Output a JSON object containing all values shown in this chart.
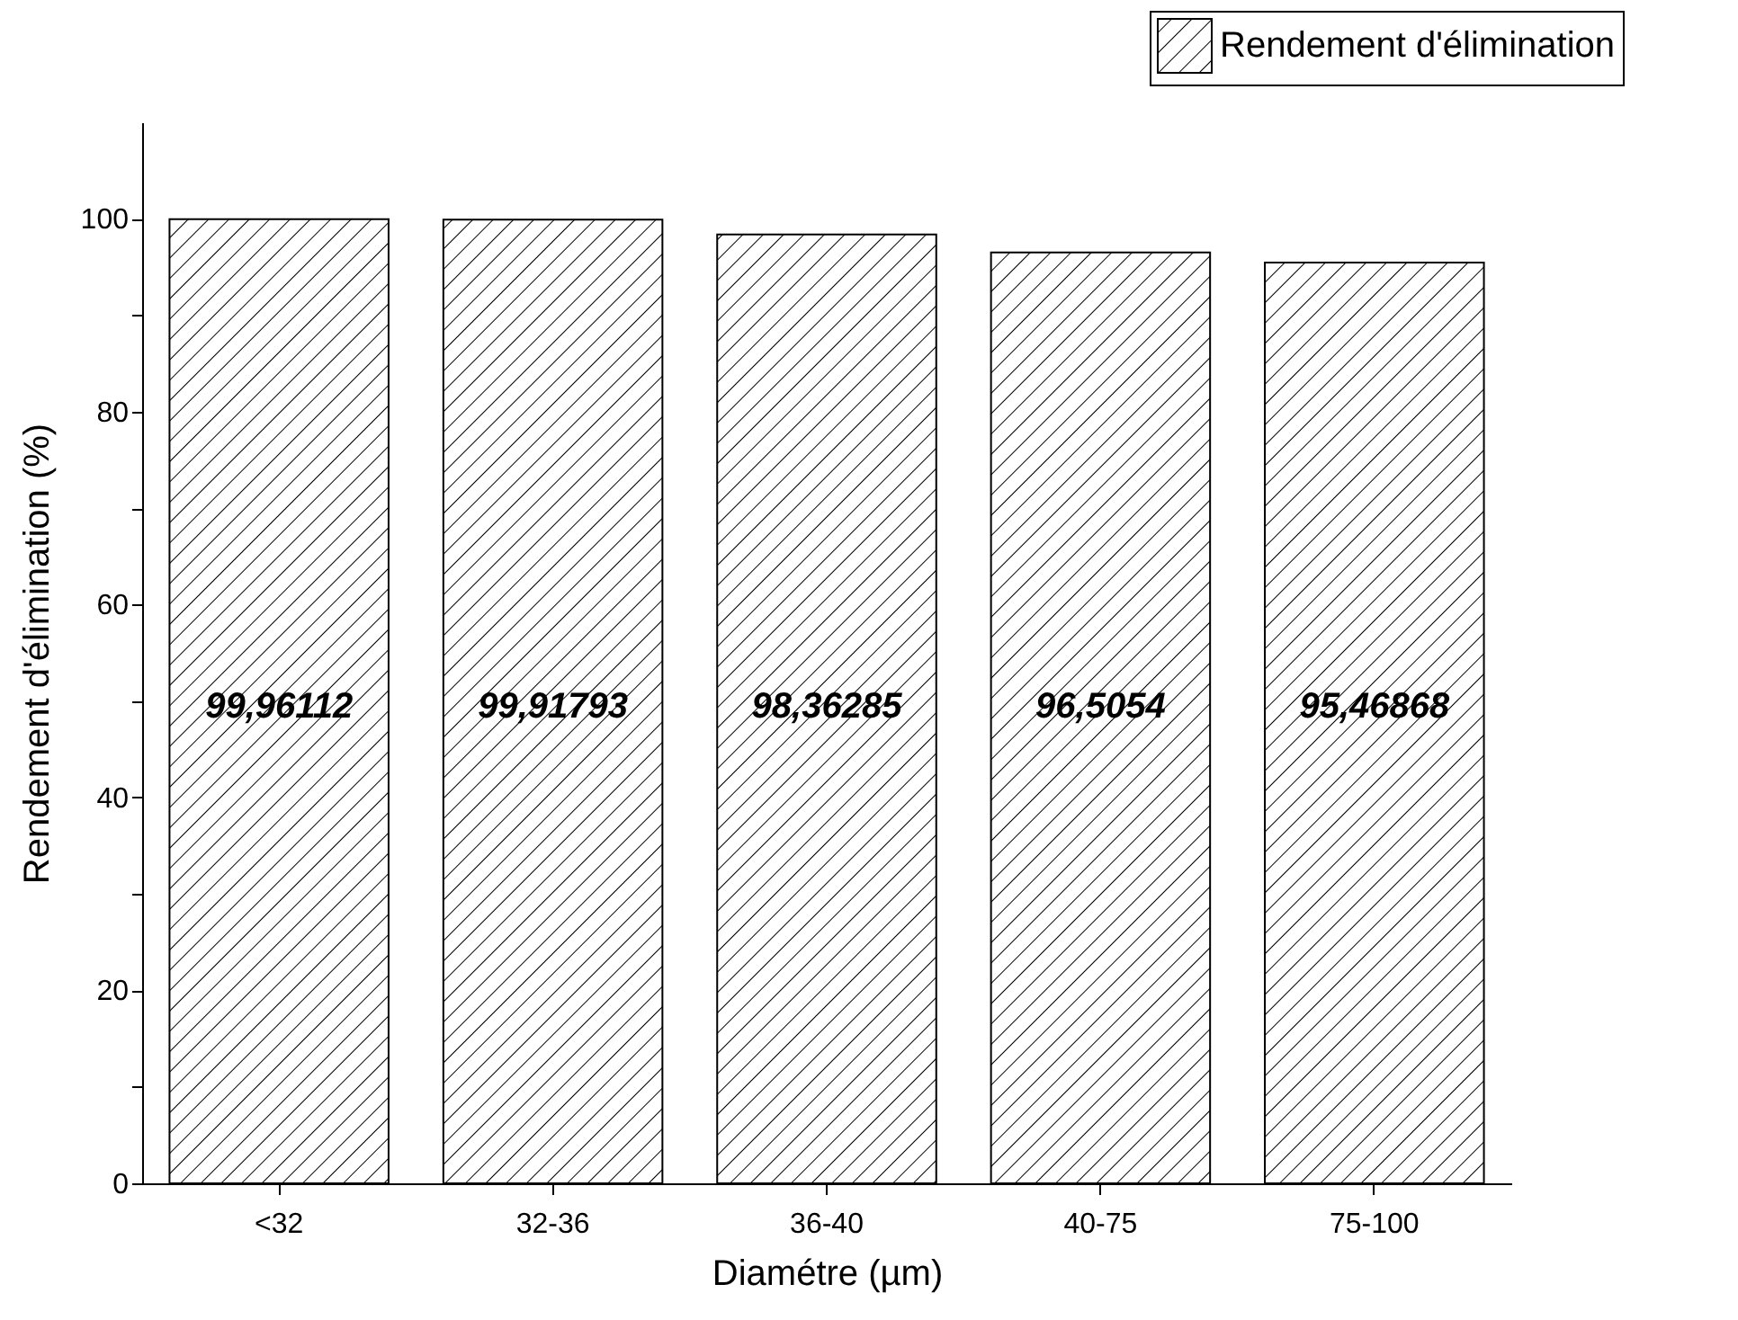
{
  "chart_data": {
    "type": "bar",
    "xlabel": "Diamétre (µm)",
    "ylabel": "Rendement d'élimination (%)",
    "categories": [
      "<32",
      "32-36",
      "36-40",
      "40-75",
      "75-100"
    ],
    "series": [
      {
        "name": "Rendement d'élimination",
        "color": "#000000",
        "values": [
          99.96112,
          99.91793,
          98.36285,
          96.5054,
          95.46868
        ],
        "value_labels": [
          "99,96112",
          "99,91793",
          "98,36285",
          "96,5054",
          "95,46868"
        ]
      }
    ],
    "ylim": [
      0,
      110
    ],
    "yticks": [
      0,
      {
        "value": 10,
        "label": null
      },
      20,
      {
        "value": 30,
        "label": null
      },
      40,
      {
        "value": 50,
        "label": null
      },
      60,
      {
        "value": 70,
        "label": null
      },
      80,
      {
        "value": 90,
        "label": null
      },
      100
    ],
    "grid": false,
    "legend": "top right"
  }
}
